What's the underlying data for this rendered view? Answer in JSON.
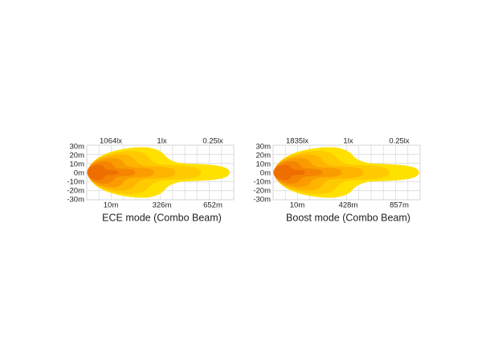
{
  "panels": [
    {
      "lux_labels": [
        "1064lx",
        "1lx",
        "0.25lx"
      ],
      "y_labels": [
        "30m",
        "20m",
        "10m",
        "0m",
        "-10m",
        "-20m",
        "-30m"
      ],
      "x_labels": [
        "10m",
        "326m",
        "652m"
      ],
      "caption": "ECE mode (Combo Beam)"
    },
    {
      "lux_labels": [
        "1835lx",
        "1lx",
        "0.25lx"
      ],
      "y_labels": [
        "30m",
        "20m",
        "10m",
        "0m",
        "-10m",
        "-20m",
        "-30m"
      ],
      "x_labels": [
        "10m",
        "428m",
        "857m"
      ],
      "caption": "Boost mode (Combo Beam)"
    }
  ]
}
